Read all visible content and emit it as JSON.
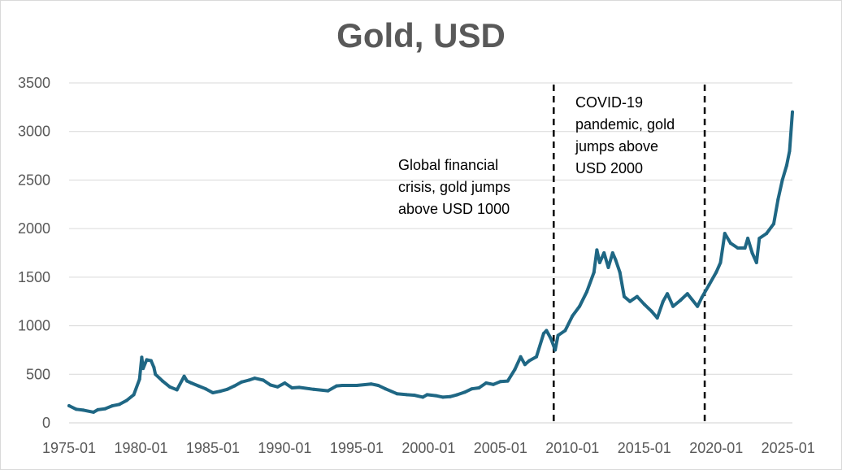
{
  "chart_data": {
    "type": "line",
    "title": "Gold, USD",
    "xlabel": "",
    "ylabel": "",
    "x_start_year": 1975,
    "x_end_year": 2025.3,
    "ylim": [
      0,
      3500
    ],
    "y_ticks": [
      "0",
      "500",
      "1000",
      "1500",
      "2000",
      "2500",
      "3000",
      "3500"
    ],
    "x_ticks": [
      "1975-01",
      "1980-01",
      "1985-01",
      "1990-01",
      "1995-01",
      "2000-01",
      "2005-01",
      "2010-01",
      "2015-01",
      "2020-01",
      "2025-01"
    ],
    "grid": true,
    "series_color": "#1f6784",
    "x": [
      1975.0,
      1975.5,
      1976.0,
      1976.7,
      1977.0,
      1977.5,
      1978.0,
      1978.5,
      1979.0,
      1979.5,
      1979.9,
      1980.05,
      1980.15,
      1980.4,
      1980.7,
      1980.9,
      1981.0,
      1981.5,
      1982.0,
      1982.5,
      1983.0,
      1983.2,
      1983.5,
      1984.0,
      1984.5,
      1985.0,
      1985.5,
      1986.0,
      1986.5,
      1987.0,
      1987.5,
      1987.9,
      1988.5,
      1989.0,
      1989.5,
      1990.0,
      1990.5,
      1991.0,
      1992.0,
      1993.0,
      1993.6,
      1994.0,
      1995.0,
      1996.0,
      1996.5,
      1997.0,
      1997.8,
      1998.5,
      1999.0,
      1999.6,
      1999.9,
      2000.5,
      2001.0,
      2001.5,
      2002.0,
      2002.5,
      2003.0,
      2003.5,
      2004.0,
      2004.5,
      2005.0,
      2005.5,
      2006.0,
      2006.4,
      2006.7,
      2007.0,
      2007.5,
      2008.0,
      2008.2,
      2008.5,
      2008.8,
      2009.0,
      2009.5,
      2010.0,
      2010.5,
      2011.0,
      2011.5,
      2011.7,
      2011.9,
      2012.2,
      2012.5,
      2012.8,
      2013.0,
      2013.3,
      2013.6,
      2014.0,
      2014.5,
      2015.0,
      2015.5,
      2015.9,
      2016.3,
      2016.6,
      2017.0,
      2017.5,
      2018.0,
      2018.7,
      2019.0,
      2019.5,
      2020.0,
      2020.3,
      2020.6,
      2021.0,
      2021.5,
      2022.0,
      2022.2,
      2022.5,
      2022.8,
      2023.0,
      2023.5,
      2024.0,
      2024.3,
      2024.6,
      2024.9,
      2025.1,
      2025.3
    ],
    "values": [
      176,
      140,
      131,
      110,
      135,
      145,
      175,
      190,
      230,
      290,
      450,
      675,
      560,
      650,
      640,
      570,
      500,
      430,
      370,
      340,
      480,
      430,
      410,
      380,
      350,
      310,
      325,
      345,
      380,
      420,
      440,
      460,
      440,
      390,
      370,
      410,
      360,
      365,
      345,
      330,
      380,
      385,
      385,
      400,
      385,
      350,
      300,
      290,
      285,
      265,
      290,
      280,
      265,
      270,
      290,
      315,
      350,
      360,
      410,
      395,
      425,
      430,
      550,
      680,
      600,
      640,
      680,
      920,
      950,
      870,
      750,
      900,
      950,
      1100,
      1200,
      1350,
      1550,
      1780,
      1650,
      1750,
      1600,
      1750,
      1680,
      1550,
      1300,
      1250,
      1300,
      1220,
      1150,
      1080,
      1250,
      1330,
      1200,
      1260,
      1330,
      1200,
      1290,
      1420,
      1550,
      1650,
      1950,
      1850,
      1800,
      1800,
      1900,
      1750,
      1650,
      1900,
      1950,
      2050,
      2300,
      2500,
      2650,
      2800,
      3200
    ],
    "annotations": [
      {
        "x": 2008.7,
        "lines": [
          "Global financial",
          "crisis, gold jumps",
          "above USD 1000"
        ]
      },
      {
        "x": 2019.2,
        "lines": [
          "COVID-19",
          "pandemic, gold",
          "jumps above",
          "USD 2000"
        ]
      }
    ]
  }
}
